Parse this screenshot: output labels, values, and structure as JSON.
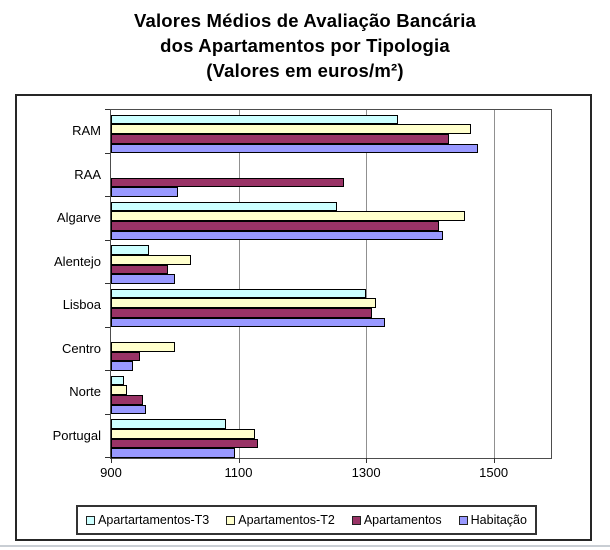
{
  "title": {
    "line1": "Valores Médios de Avaliação Bancária",
    "line2": "dos Apartamentos por Tipologia",
    "line3": "(Valores em euros/m²)"
  },
  "chart_data": {
    "type": "bar",
    "orientation": "horizontal",
    "title": "Valores Médios de Avaliação Bancária dos Apartamentos por Tipologia (Valores em euros/m²)",
    "categories": [
      "RAM",
      "RAA",
      "Algarve",
      "Alentejo",
      "Lisboa",
      "Centro",
      "Norte",
      "Portugal"
    ],
    "series": [
      {
        "name": "Apartartamentos-T3",
        "color": "#CCFFFF",
        "values": [
          1350,
          null,
          1255,
          960,
          1300,
          null,
          920,
          1080
        ]
      },
      {
        "name": "Apartamentos-T2",
        "color": "#FFFFCC",
        "values": [
          1465,
          null,
          1455,
          1025,
          1315,
          1000,
          925,
          1125
        ]
      },
      {
        "name": "Apartamentos",
        "color": "#993366",
        "values": [
          1430,
          1265,
          1415,
          990,
          1310,
          945,
          950,
          1130
        ]
      },
      {
        "name": "Habitação",
        "color": "#9999FF",
        "values": [
          1475,
          1005,
          1420,
          1000,
          1330,
          935,
          955,
          1095
        ]
      }
    ],
    "x_axis": {
      "min": 900,
      "max": 1590,
      "ticks": [
        900,
        1100,
        1300,
        1500
      ]
    },
    "grid": true,
    "legend_position": "bottom"
  },
  "colors": {
    "grid": "#909090",
    "plot_border": "#4d4d4d",
    "bar_border": "#000000",
    "chart_border": "#262626"
  }
}
